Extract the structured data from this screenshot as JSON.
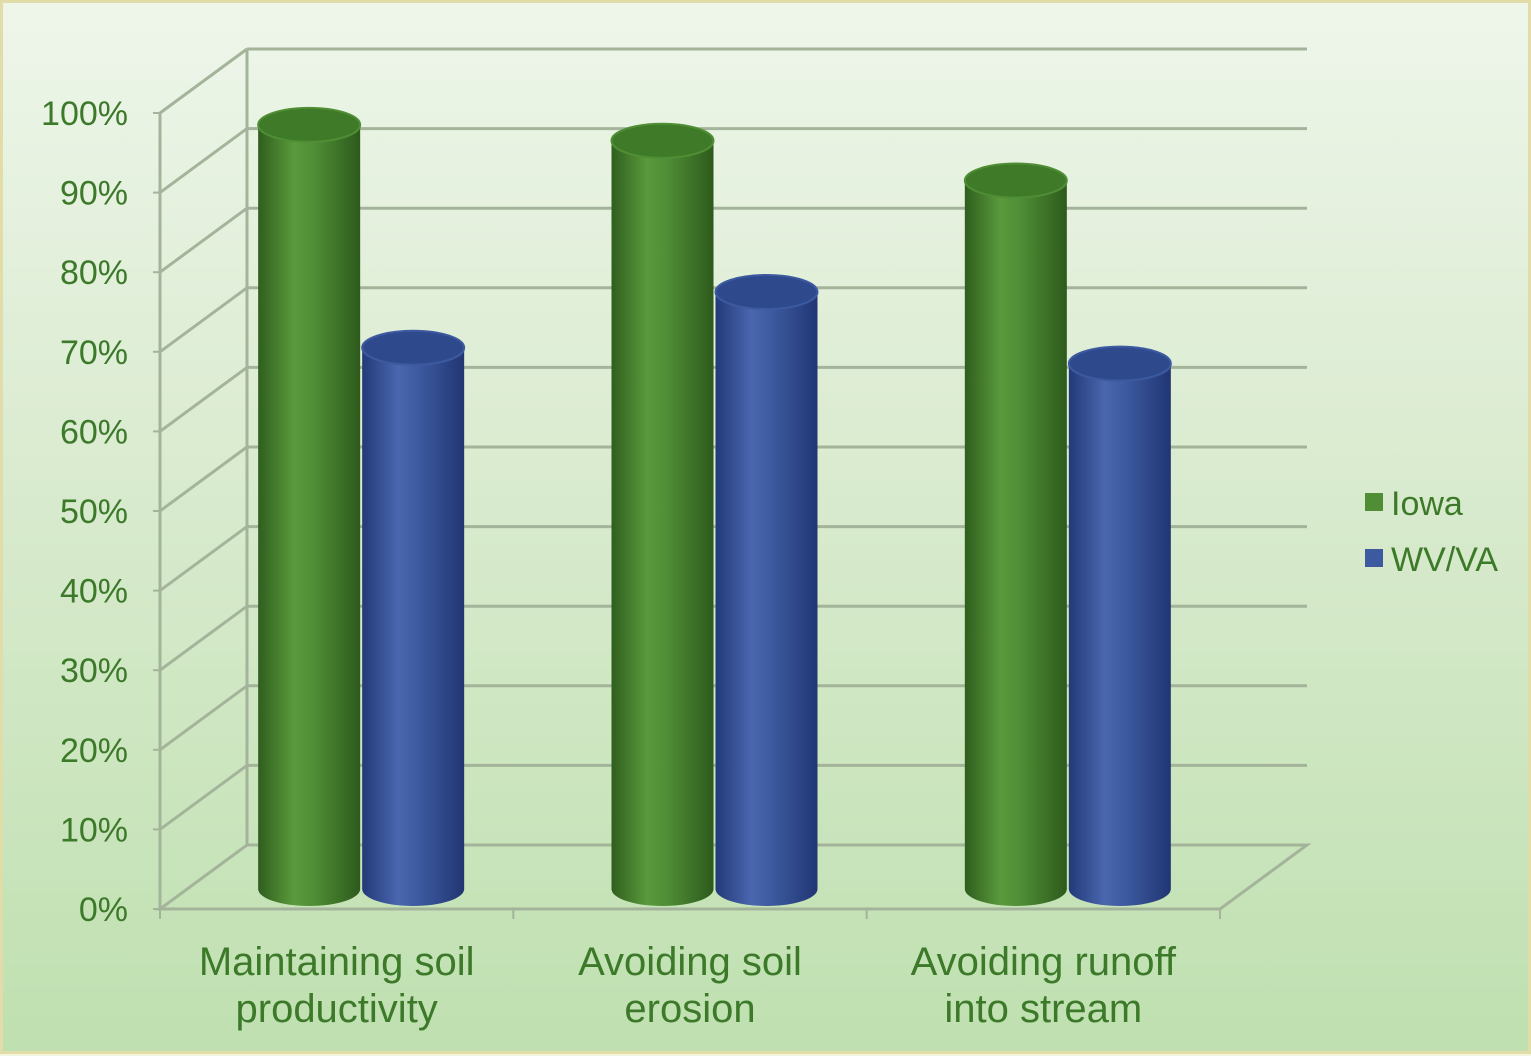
{
  "chart_data": {
    "type": "bar",
    "categories": [
      [
        "Maintaining soil",
        "productivity"
      ],
      [
        "Avoiding soil",
        "erosion"
      ],
      [
        "Avoiding runoff",
        "into stream"
      ]
    ],
    "series": [
      {
        "name": "Iowa",
        "values": [
          96,
          94,
          89
        ],
        "color": "#4f8e35"
      },
      {
        "name": "WV/VA",
        "values": [
          68,
          75,
          66
        ],
        "color": "#3d5aa0"
      }
    ],
    "yticks": [
      "0%",
      "10%",
      "20%",
      "30%",
      "40%",
      "50%",
      "60%",
      "70%",
      "80%",
      "90%",
      "100%"
    ],
    "ylim": [
      0,
      100
    ],
    "grid": true,
    "legend_position": "right",
    "style": "3d-cylinder"
  }
}
